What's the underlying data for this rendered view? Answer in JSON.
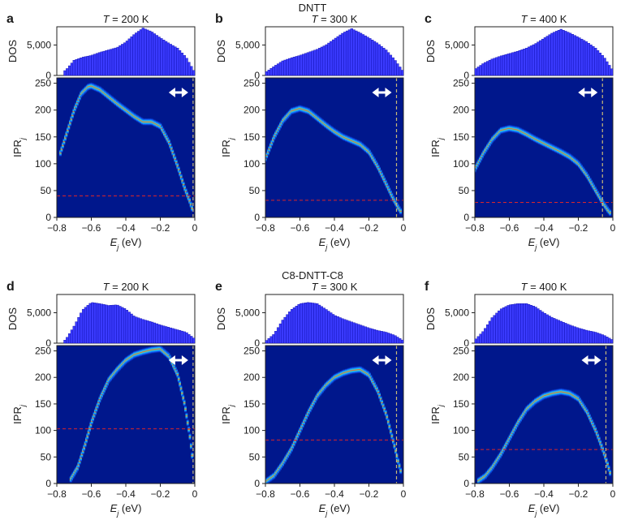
{
  "figure": {
    "group_titles": [
      "DNTT",
      "C8-DNTT-C8"
    ],
    "x_ticks": [
      "−0.8",
      "−0.6",
      "−0.4",
      "−0.2",
      "0"
    ],
    "dos_ticks_top": [
      "5,000",
      "5,000",
      "5,000"
    ],
    "dos_ticks_bottom": [
      "5,000",
      "5,000",
      "5,000"
    ],
    "ipr_ticks": [
      "0",
      "50",
      "100",
      "150",
      "200",
      "250"
    ],
    "dos_label": "DOS",
    "ipr_label": "IPR",
    "ipr_sub": "j",
    "x_label": "E",
    "x_sub": "j",
    "x_unit": " (eV)",
    "temp_prefix": "T",
    "temp_suffix": " = ",
    "colors": {
      "heatmap_bg": "#00178c",
      "dos_bar": "#3b3bff",
      "dos_edge": "#0a0aa8",
      "threshold": "#d8262a",
      "boundary": "#c9b977",
      "arrow": "#ffffff"
    }
  },
  "chart_data": [
    {
      "panel": "a",
      "material": "DNTT",
      "temperature": "200 K",
      "type": "heatmap",
      "xlabel": "E_j (eV)",
      "ylabel": "IPR_j",
      "xlim": [
        -0.8,
        0
      ],
      "ylim": [
        0,
        260
      ],
      "ipr_curve": [
        [
          -0.78,
          120
        ],
        [
          -0.74,
          160
        ],
        [
          -0.7,
          200
        ],
        [
          -0.66,
          230
        ],
        [
          -0.62,
          243
        ],
        [
          -0.6,
          245
        ],
        [
          -0.55,
          238
        ],
        [
          -0.5,
          225
        ],
        [
          -0.45,
          212
        ],
        [
          -0.4,
          200
        ],
        [
          -0.35,
          188
        ],
        [
          -0.3,
          178
        ],
        [
          -0.25,
          178
        ],
        [
          -0.2,
          170
        ],
        [
          -0.15,
          140
        ],
        [
          -0.1,
          95
        ],
        [
          -0.06,
          55
        ],
        [
          -0.03,
          30
        ],
        [
          -0.01,
          10
        ]
      ],
      "ipr_threshold": 40,
      "mobility_edge_x": -0.01,
      "dos": {
        "ylim": [
          0,
          8000
        ],
        "ticks": [
          0,
          5000
        ],
        "values": [
          [
            -0.75,
            800
          ],
          [
            -0.7,
            2500
          ],
          [
            -0.65,
            3000
          ],
          [
            -0.6,
            3300
          ],
          [
            -0.55,
            3800
          ],
          [
            -0.5,
            4200
          ],
          [
            -0.45,
            4600
          ],
          [
            -0.4,
            5500
          ],
          [
            -0.35,
            6800
          ],
          [
            -0.3,
            7800
          ],
          [
            -0.25,
            7200
          ],
          [
            -0.2,
            6200
          ],
          [
            -0.15,
            5300
          ],
          [
            -0.1,
            4500
          ],
          [
            -0.05,
            3000
          ],
          [
            0,
            500
          ]
        ]
      }
    },
    {
      "panel": "b",
      "material": "DNTT",
      "temperature": "300 K",
      "type": "heatmap",
      "xlabel": "E_j (eV)",
      "ylabel": "IPR_j",
      "xlim": [
        -0.8,
        0
      ],
      "ylim": [
        0,
        260
      ],
      "ipr_curve": [
        [
          -0.8,
          110
        ],
        [
          -0.75,
          150
        ],
        [
          -0.7,
          180
        ],
        [
          -0.65,
          198
        ],
        [
          -0.6,
          203
        ],
        [
          -0.55,
          198
        ],
        [
          -0.5,
          185
        ],
        [
          -0.45,
          172
        ],
        [
          -0.4,
          160
        ],
        [
          -0.35,
          150
        ],
        [
          -0.3,
          143
        ],
        [
          -0.25,
          136
        ],
        [
          -0.2,
          122
        ],
        [
          -0.15,
          95
        ],
        [
          -0.1,
          62
        ],
        [
          -0.06,
          35
        ],
        [
          -0.03,
          18
        ],
        [
          -0.01,
          8
        ]
      ],
      "ipr_threshold": 32,
      "mobility_edge_x": -0.04,
      "dos": {
        "ylim": [
          0,
          8000
        ],
        "ticks": [
          0,
          5000
        ],
        "values": [
          [
            -0.8,
            500
          ],
          [
            -0.75,
            1500
          ],
          [
            -0.7,
            2400
          ],
          [
            -0.65,
            2900
          ],
          [
            -0.6,
            3300
          ],
          [
            -0.55,
            3800
          ],
          [
            -0.5,
            4300
          ],
          [
            -0.45,
            5000
          ],
          [
            -0.4,
            6000
          ],
          [
            -0.35,
            7000
          ],
          [
            -0.3,
            7700
          ],
          [
            -0.25,
            7000
          ],
          [
            -0.2,
            6200
          ],
          [
            -0.15,
            5300
          ],
          [
            -0.1,
            4200
          ],
          [
            -0.05,
            2600
          ],
          [
            0,
            600
          ]
        ]
      }
    },
    {
      "panel": "c",
      "material": "DNTT",
      "temperature": "400 K",
      "type": "heatmap",
      "xlabel": "E_j (eV)",
      "ylabel": "IPR_j",
      "xlim": [
        -0.8,
        0
      ],
      "ylim": [
        0,
        260
      ],
      "ipr_curve": [
        [
          -0.8,
          90
        ],
        [
          -0.75,
          120
        ],
        [
          -0.7,
          145
        ],
        [
          -0.65,
          162
        ],
        [
          -0.6,
          166
        ],
        [
          -0.55,
          163
        ],
        [
          -0.5,
          155
        ],
        [
          -0.45,
          146
        ],
        [
          -0.4,
          138
        ],
        [
          -0.35,
          130
        ],
        [
          -0.3,
          122
        ],
        [
          -0.25,
          113
        ],
        [
          -0.2,
          100
        ],
        [
          -0.15,
          78
        ],
        [
          -0.1,
          50
        ],
        [
          -0.06,
          28
        ],
        [
          -0.03,
          14
        ],
        [
          -0.01,
          6
        ]
      ],
      "ipr_threshold": 28,
      "mobility_edge_x": -0.06,
      "dos": {
        "ylim": [
          0,
          8000
        ],
        "ticks": [
          0,
          5000
        ],
        "values": [
          [
            -0.8,
            1000
          ],
          [
            -0.75,
            2000
          ],
          [
            -0.7,
            2700
          ],
          [
            -0.65,
            3200
          ],
          [
            -0.6,
            3600
          ],
          [
            -0.55,
            4000
          ],
          [
            -0.5,
            4500
          ],
          [
            -0.45,
            5200
          ],
          [
            -0.4,
            6100
          ],
          [
            -0.35,
            7000
          ],
          [
            -0.3,
            7600
          ],
          [
            -0.25,
            7000
          ],
          [
            -0.2,
            6300
          ],
          [
            -0.15,
            5500
          ],
          [
            -0.1,
            4500
          ],
          [
            -0.05,
            3000
          ],
          [
            0,
            800
          ]
        ]
      }
    },
    {
      "panel": "d",
      "material": "C8-DNTT-C8",
      "temperature": "200 K",
      "type": "heatmap",
      "xlabel": "E_j (eV)",
      "ylabel": "IPR_j",
      "xlim": [
        -0.8,
        0
      ],
      "ylim": [
        0,
        260
      ],
      "ipr_curve": [
        [
          -0.72,
          8
        ],
        [
          -0.68,
          30
        ],
        [
          -0.64,
          70
        ],
        [
          -0.6,
          115
        ],
        [
          -0.55,
          160
        ],
        [
          -0.5,
          195
        ],
        [
          -0.45,
          215
        ],
        [
          -0.4,
          232
        ],
        [
          -0.35,
          243
        ],
        [
          -0.3,
          248
        ],
        [
          -0.25,
          252
        ],
        [
          -0.2,
          254
        ],
        [
          -0.15,
          240
        ],
        [
          -0.1,
          205
        ],
        [
          -0.06,
          150
        ],
        [
          -0.03,
          90
        ],
        [
          -0.01,
          35
        ]
      ],
      "ipr_threshold": 103,
      "mobility_edge_x": -0.01,
      "dos": {
        "ylim": [
          0,
          8000
        ],
        "ticks": [
          0,
          5000
        ],
        "values": [
          [
            -0.75,
            500
          ],
          [
            -0.7,
            2800
          ],
          [
            -0.65,
            5500
          ],
          [
            -0.6,
            6700
          ],
          [
            -0.55,
            6500
          ],
          [
            -0.5,
            6200
          ],
          [
            -0.45,
            6300
          ],
          [
            -0.4,
            5600
          ],
          [
            -0.35,
            4400
          ],
          [
            -0.3,
            3900
          ],
          [
            -0.25,
            3500
          ],
          [
            -0.2,
            3000
          ],
          [
            -0.15,
            2600
          ],
          [
            -0.1,
            2200
          ],
          [
            -0.05,
            1800
          ],
          [
            0,
            700
          ]
        ]
      }
    },
    {
      "panel": "e",
      "material": "C8-DNTT-C8",
      "temperature": "300 K",
      "type": "heatmap",
      "xlabel": "E_j (eV)",
      "ylabel": "IPR_j",
      "xlim": [
        -0.8,
        0
      ],
      "ylim": [
        0,
        260
      ],
      "ipr_curve": [
        [
          -0.8,
          3
        ],
        [
          -0.75,
          15
        ],
        [
          -0.7,
          38
        ],
        [
          -0.65,
          65
        ],
        [
          -0.6,
          100
        ],
        [
          -0.55,
          135
        ],
        [
          -0.5,
          165
        ],
        [
          -0.45,
          185
        ],
        [
          -0.4,
          200
        ],
        [
          -0.35,
          208
        ],
        [
          -0.3,
          213
        ],
        [
          -0.25,
          215
        ],
        [
          -0.2,
          205
        ],
        [
          -0.15,
          175
        ],
        [
          -0.1,
          130
        ],
        [
          -0.06,
          80
        ],
        [
          -0.03,
          40
        ],
        [
          -0.01,
          15
        ]
      ],
      "ipr_threshold": 82,
      "mobility_edge_x": -0.04,
      "dos": {
        "ylim": [
          0,
          8000
        ],
        "ticks": [
          0,
          5000
        ],
        "values": [
          [
            -0.8,
            300
          ],
          [
            -0.75,
            1500
          ],
          [
            -0.7,
            3800
          ],
          [
            -0.65,
            5500
          ],
          [
            -0.6,
            6500
          ],
          [
            -0.55,
            6700
          ],
          [
            -0.5,
            6500
          ],
          [
            -0.45,
            5600
          ],
          [
            -0.4,
            4600
          ],
          [
            -0.35,
            4000
          ],
          [
            -0.3,
            3500
          ],
          [
            -0.25,
            3000
          ],
          [
            -0.2,
            2500
          ],
          [
            -0.15,
            2100
          ],
          [
            -0.1,
            1800
          ],
          [
            -0.05,
            1300
          ],
          [
            0,
            400
          ]
        ]
      }
    },
    {
      "panel": "f",
      "material": "C8-DNTT-C8",
      "temperature": "400 K",
      "type": "heatmap",
      "xlabel": "E_j (eV)",
      "ylabel": "IPR_j",
      "xlim": [
        -0.8,
        0
      ],
      "ylim": [
        0,
        260
      ],
      "ipr_curve": [
        [
          -0.78,
          5
        ],
        [
          -0.74,
          14
        ],
        [
          -0.7,
          30
        ],
        [
          -0.65,
          55
        ],
        [
          -0.6,
          85
        ],
        [
          -0.55,
          115
        ],
        [
          -0.5,
          140
        ],
        [
          -0.45,
          155
        ],
        [
          -0.4,
          165
        ],
        [
          -0.35,
          170
        ],
        [
          -0.3,
          173
        ],
        [
          -0.25,
          170
        ],
        [
          -0.2,
          160
        ],
        [
          -0.15,
          135
        ],
        [
          -0.1,
          100
        ],
        [
          -0.06,
          65
        ],
        [
          -0.03,
          35
        ],
        [
          -0.01,
          12
        ]
      ],
      "ipr_threshold": 64,
      "mobility_edge_x": -0.04,
      "dos": {
        "ylim": [
          0,
          8000
        ],
        "ticks": [
          0,
          5000
        ],
        "values": [
          [
            -0.8,
            500
          ],
          [
            -0.75,
            2000
          ],
          [
            -0.7,
            4200
          ],
          [
            -0.65,
            5600
          ],
          [
            -0.6,
            6300
          ],
          [
            -0.55,
            6500
          ],
          [
            -0.5,
            6500
          ],
          [
            -0.45,
            6000
          ],
          [
            -0.4,
            5000
          ],
          [
            -0.35,
            4200
          ],
          [
            -0.3,
            3600
          ],
          [
            -0.25,
            3000
          ],
          [
            -0.2,
            2500
          ],
          [
            -0.15,
            2100
          ],
          [
            -0.1,
            1800
          ],
          [
            -0.05,
            1300
          ],
          [
            0,
            500
          ]
        ]
      }
    }
  ]
}
